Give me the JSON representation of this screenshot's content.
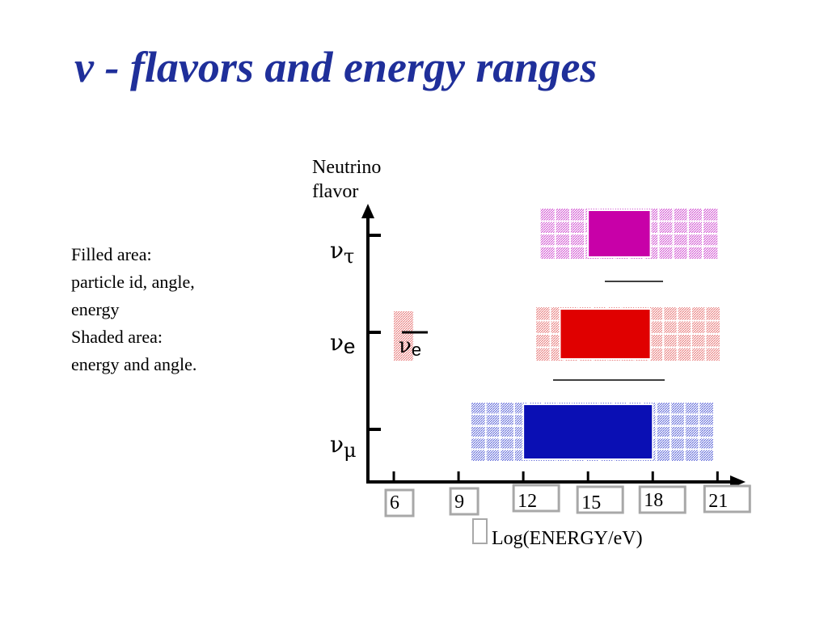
{
  "slide": {
    "title": "ν - flavors and energy ranges"
  },
  "notes": {
    "line1": "Filled area:",
    "line2": "particle id, angle,",
    "line3": "energy",
    "line4": "Shaded area:",
    "line5": "energy and angle."
  },
  "chart_data": {
    "type": "bar",
    "ylabel_lines": [
      "Neutrino",
      "flavor"
    ],
    "xlabel": "Log(ENERGY/eV)",
    "x_ticks": [
      6,
      9,
      12,
      15,
      18,
      21
    ],
    "x_tick_labels": [
      "6",
      "9",
      "12",
      "15",
      "18",
      "21"
    ],
    "xlim": [
      4.8,
      22.3
    ],
    "categories": [
      {
        "key": "tau",
        "symbol": "ν",
        "sub": "τ",
        "sub_style": "greek"
      },
      {
        "key": "e",
        "symbol": "ν",
        "sub": "e",
        "sub_style": "latin"
      },
      {
        "key": "mu",
        "symbol": "ν",
        "sub": "μ",
        "sub_style": "greek"
      }
    ],
    "series": [
      {
        "flavor": "tau",
        "shaded_range": [
          12.8,
          21.0
        ],
        "filled_range": [
          15.0,
          17.9
        ],
        "color": "#c800a8",
        "shade_color": "#d050d0"
      },
      {
        "flavor": "e",
        "shaded_range": [
          12.6,
          21.1
        ],
        "filled_range": [
          13.7,
          17.9
        ],
        "color": "#e00000",
        "shade_color": "#e87878"
      },
      {
        "flavor": "mu",
        "shaded_range": [
          9.6,
          20.8
        ],
        "filled_range": [
          12.0,
          18.0
        ],
        "color": "#0a0fb4",
        "shade_color": "#5c66d8"
      },
      {
        "flavor": "e",
        "shaded_range": [
          6.0,
          6.9
        ],
        "filled_range": null,
        "color": "#e87878",
        "shade_color": "#e87878",
        "label_symbol": "ν",
        "label_sub": "e"
      }
    ]
  }
}
